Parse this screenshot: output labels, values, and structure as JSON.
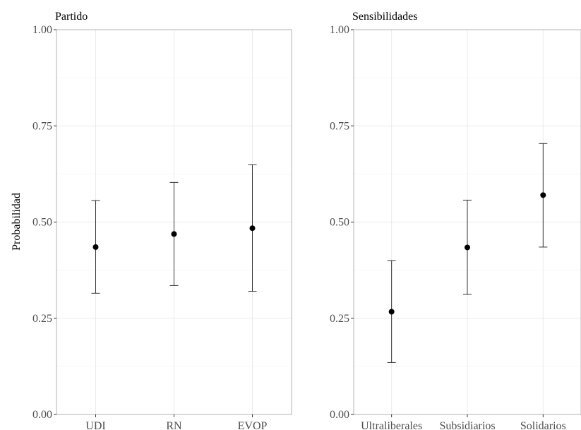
{
  "ylabel": "Probabilidad",
  "chart_data": [
    {
      "type": "scatter",
      "title": "Partido",
      "xlabel": "",
      "ylabel": "Probabilidad",
      "categories": [
        "UDI",
        "RN",
        "EVOP"
      ],
      "values": [
        0.435,
        0.469,
        0.484
      ],
      "lower": [
        0.315,
        0.335,
        0.32
      ],
      "upper": [
        0.556,
        0.603,
        0.649
      ],
      "ylim": [
        0,
        1
      ],
      "yticks": [
        "0.00",
        "0.25",
        "0.50",
        "0.75",
        "1.00"
      ],
      "grid": true
    },
    {
      "type": "scatter",
      "title": "Sensibilidades",
      "xlabel": "",
      "ylabel": "",
      "categories": [
        "Ultraliberales",
        "Subsidiarios",
        "Solidarios"
      ],
      "values": [
        0.267,
        0.434,
        0.57
      ],
      "lower": [
        0.135,
        0.312,
        0.435
      ],
      "upper": [
        0.4,
        0.557,
        0.704
      ],
      "ylim": [
        0,
        1
      ],
      "yticks": [
        "0.00",
        "0.25",
        "0.50",
        "0.75",
        "1.00"
      ],
      "grid": true
    }
  ]
}
